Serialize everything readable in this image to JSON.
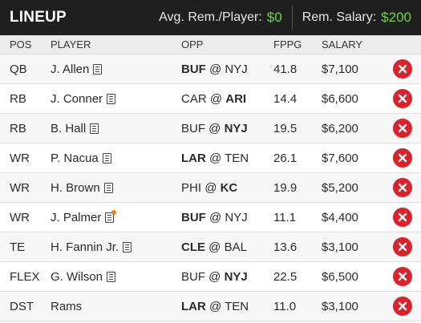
{
  "header": {
    "title": "LINEUP",
    "avg_label": "Avg. Rem./Player:",
    "avg_value": "$0",
    "rem_label": "Rem. Salary:",
    "rem_value": "$200"
  },
  "columns": {
    "pos": "POS",
    "player": "PLAYER",
    "opp": "OPP",
    "fppg": "FPPG",
    "salary": "SALARY"
  },
  "icons": {
    "notes": "notes-icon",
    "remove": "remove-icon"
  },
  "colors": {
    "accent_green": "#6fd34b",
    "remove_red": "#d9222a",
    "note_alert": "#f07d1b"
  },
  "rows": [
    {
      "pos": "QB",
      "player": "J. Allen",
      "notes": true,
      "alert": false,
      "away": "BUF",
      "at": "@",
      "home": "NYJ",
      "bold": "away",
      "fppg": "41.8",
      "salary": "$7,100"
    },
    {
      "pos": "RB",
      "player": "J. Conner",
      "notes": true,
      "alert": false,
      "away": "CAR",
      "at": "@",
      "home": "ARI",
      "bold": "home",
      "fppg": "14.4",
      "salary": "$6,600"
    },
    {
      "pos": "RB",
      "player": "B. Hall",
      "notes": true,
      "alert": false,
      "away": "BUF",
      "at": "@",
      "home": "NYJ",
      "bold": "home",
      "fppg": "19.5",
      "salary": "$6,200"
    },
    {
      "pos": "WR",
      "player": "P. Nacua",
      "notes": true,
      "alert": false,
      "away": "LAR",
      "at": "@",
      "home": "TEN",
      "bold": "away",
      "fppg": "26.1",
      "salary": "$7,600"
    },
    {
      "pos": "WR",
      "player": "H. Brown",
      "notes": true,
      "alert": false,
      "away": "PHI",
      "at": "@",
      "home": "KC",
      "bold": "home",
      "fppg": "19.9",
      "salary": "$5,200"
    },
    {
      "pos": "WR",
      "player": "J. Palmer",
      "notes": true,
      "alert": true,
      "away": "BUF",
      "at": "@",
      "home": "NYJ",
      "bold": "away",
      "fppg": "11.1",
      "salary": "$4,400"
    },
    {
      "pos": "TE",
      "player": "H. Fannin Jr.",
      "notes": true,
      "alert": false,
      "away": "CLE",
      "at": "@",
      "home": "BAL",
      "bold": "away",
      "fppg": "13.6",
      "salary": "$3,100"
    },
    {
      "pos": "FLEX",
      "player": "G. Wilson",
      "notes": true,
      "alert": false,
      "away": "BUF",
      "at": "@",
      "home": "NYJ",
      "bold": "home",
      "fppg": "22.5",
      "salary": "$6,500"
    },
    {
      "pos": "DST",
      "player": "Rams",
      "notes": false,
      "alert": false,
      "away": "LAR",
      "at": "@",
      "home": "TEN",
      "bold": "away",
      "fppg": "11.0",
      "salary": "$3,100"
    }
  ]
}
